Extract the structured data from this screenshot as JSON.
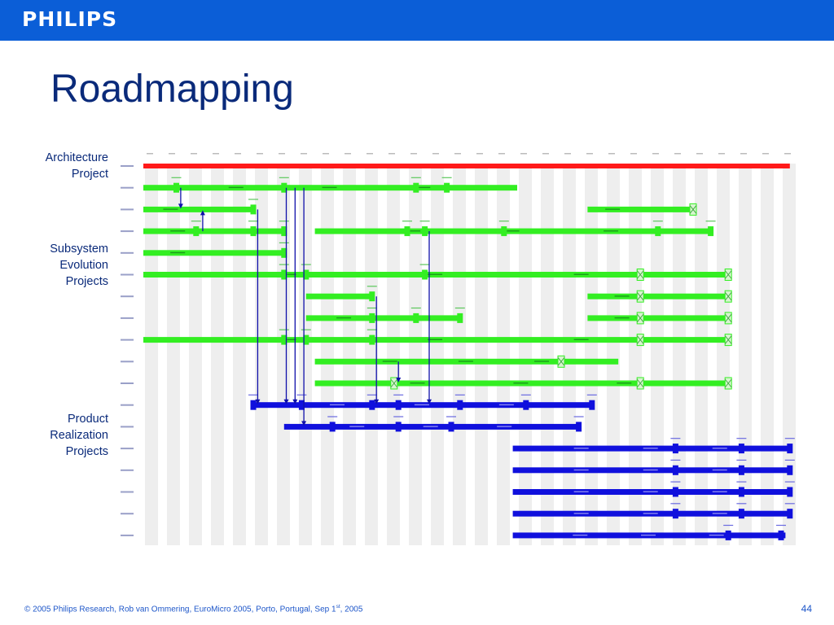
{
  "header": {
    "brand": "PHILIPS",
    "brand_color": "#0b5ed7"
  },
  "slide": {
    "title": "Roadmapping",
    "page_number": "44"
  },
  "groups": {
    "architecture": "Architecture Project",
    "subsystem": "Subsystem Evolution Projects",
    "product": "Product Realization Projects"
  },
  "footer": {
    "pre": "© 2005 Philips Research,  Rob van Ommering, EuroMicro 2005, Porto, Portugal, Sep 1",
    "sup": "st",
    "post": ", 2005"
  },
  "roadmap": {
    "colors": {
      "architecture": "#ff1a1a",
      "subsystem": "#33ee22",
      "product": "#1010dd",
      "link": "#1010aa",
      "column": "#eeeeee"
    },
    "column_count": 30,
    "rows": [
      {
        "type": "architecture",
        "bars": [
          [
            0.0,
            29.4
          ]
        ],
        "markers": []
      },
      {
        "type": "subsystem",
        "bars": [
          [
            0.0,
            17.0
          ]
        ],
        "markers": [
          1.5,
          6.4,
          12.4,
          13.8
        ]
      },
      {
        "type": "subsystem",
        "bars": [
          [
            0.0,
            5.1
          ],
          [
            20.2,
            24.9
          ]
        ],
        "markers": [
          5.0
        ]
      },
      {
        "type": "subsystem",
        "bars": [
          [
            0.0,
            6.4
          ],
          [
            7.8,
            25.8
          ]
        ],
        "markers": [
          2.4,
          5.0,
          6.4,
          12.0,
          12.8,
          16.4,
          23.4,
          25.8
        ]
      },
      {
        "type": "subsystem",
        "bars": [
          [
            0.0,
            6.4
          ]
        ],
        "markers": [
          6.4
        ]
      },
      {
        "type": "subsystem",
        "bars": [
          [
            0.0,
            26.6
          ]
        ],
        "markers": [
          6.4,
          7.4,
          12.8
        ]
      },
      {
        "type": "subsystem",
        "bars": [
          [
            7.4,
            10.4
          ],
          [
            20.2,
            26.6
          ]
        ],
        "markers": [
          10.4
        ]
      },
      {
        "type": "subsystem",
        "bars": [
          [
            7.4,
            14.4
          ],
          [
            20.2,
            26.6
          ]
        ],
        "markers": [
          10.4,
          12.4,
          14.4
        ]
      },
      {
        "type": "subsystem",
        "bars": [
          [
            0.0,
            26.6
          ]
        ],
        "markers": [
          6.4,
          7.4,
          10.4
        ]
      },
      {
        "type": "subsystem",
        "bars": [
          [
            7.8,
            21.6
          ]
        ],
        "markers": []
      },
      {
        "type": "subsystem",
        "bars": [
          [
            7.8,
            26.6
          ]
        ],
        "markers": []
      },
      {
        "type": "product",
        "bars": [
          [
            5.0,
            20.4
          ]
        ],
        "markers": [
          5.0,
          7.2,
          10.4,
          11.6,
          14.4,
          17.4,
          20.4
        ]
      },
      {
        "type": "product",
        "bars": [
          [
            6.4,
            19.8
          ]
        ],
        "markers": [
          8.6,
          11.6,
          14.0,
          19.8
        ]
      },
      {
        "type": "product",
        "bars": [
          [
            16.8,
            29.4
          ]
        ],
        "markers": [
          24.2,
          27.2,
          29.4
        ]
      },
      {
        "type": "product",
        "bars": [
          [
            16.8,
            29.4
          ]
        ],
        "markers": [
          24.2,
          27.2,
          29.4
        ]
      },
      {
        "type": "product",
        "bars": [
          [
            16.8,
            29.4
          ]
        ],
        "markers": [
          24.2,
          27.2,
          29.4
        ]
      },
      {
        "type": "product",
        "bars": [
          [
            16.8,
            29.4
          ]
        ],
        "markers": [
          24.2,
          27.2,
          29.4
        ]
      },
      {
        "type": "product",
        "bars": [
          [
            16.8,
            29.2
          ]
        ],
        "markers": [
          26.6,
          29.0
        ]
      }
    ],
    "milestones": [
      {
        "row": 2,
        "col": 25.0
      },
      {
        "row": 5,
        "col": 22.6
      },
      {
        "row": 5,
        "col": 26.6
      },
      {
        "row": 6,
        "col": 22.6
      },
      {
        "row": 6,
        "col": 26.6
      },
      {
        "row": 7,
        "col": 22.6
      },
      {
        "row": 7,
        "col": 26.6
      },
      {
        "row": 8,
        "col": 22.6
      },
      {
        "row": 8,
        "col": 26.6
      },
      {
        "row": 9,
        "col": 19.0
      },
      {
        "row": 10,
        "col": 11.4
      },
      {
        "row": 10,
        "col": 22.6
      },
      {
        "row": 10,
        "col": 26.6
      }
    ],
    "links": [
      {
        "col": 1.7,
        "from_row": 1,
        "to_row": 2
      },
      {
        "col": 2.7,
        "from_row": 3,
        "to_row": 2
      },
      {
        "col": 5.2,
        "from_row": 2,
        "to_row": 11
      },
      {
        "col": 6.5,
        "from_row": 1,
        "to_row": 11
      },
      {
        "col": 6.9,
        "from_row": 1,
        "to_row": 11
      },
      {
        "col": 7.3,
        "from_row": 1,
        "to_row": 12
      },
      {
        "col": 10.6,
        "from_row": 6,
        "to_row": 11
      },
      {
        "col": 13.0,
        "from_row": 3,
        "to_row": 11
      },
      {
        "col": 11.6,
        "from_row": 9,
        "to_row": 10
      }
    ]
  }
}
